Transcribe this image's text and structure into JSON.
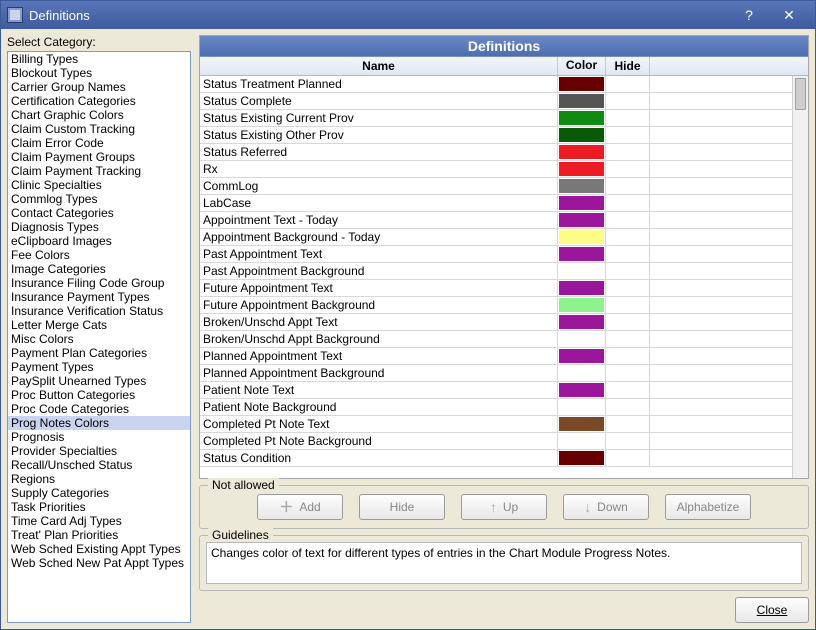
{
  "window": {
    "title": "Definitions",
    "help": "?",
    "close": "✕"
  },
  "sidebar": {
    "label": "Select Category:",
    "items": [
      "Billing Types",
      "Blockout Types",
      "Carrier Group Names",
      "Certification Categories",
      "Chart Graphic Colors",
      "Claim Custom Tracking",
      "Claim Error Code",
      "Claim Payment Groups",
      "Claim Payment Tracking",
      "Clinic Specialties",
      "Commlog Types",
      "Contact Categories",
      "Diagnosis Types",
      "eClipboard Images",
      "Fee Colors",
      "Image Categories",
      "Insurance Filing Code Group",
      "Insurance Payment Types",
      "Insurance Verification Status",
      "Letter Merge Cats",
      "Misc Colors",
      "Payment Plan Categories",
      "Payment Types",
      "PaySplit Unearned Types",
      "Proc Button Categories",
      "Proc Code Categories",
      "Prog Notes Colors",
      "Prognosis",
      "Provider Specialties",
      "Recall/Unsched Status",
      "Regions",
      "Supply Categories",
      "Task Priorities",
      "Time Card Adj Types",
      "Treat' Plan Priorities",
      "Web Sched Existing Appt Types",
      "Web Sched New Pat Appt Types"
    ],
    "selected_index": 26
  },
  "grid": {
    "title": "Definitions",
    "columns": {
      "name": "Name",
      "color": "Color",
      "hide": "Hide"
    },
    "rows": [
      {
        "name": "Status Treatment Planned",
        "color": "#660000"
      },
      {
        "name": "Status Complete",
        "color": "#555555"
      },
      {
        "name": "Status Existing Current Prov",
        "color": "#118a11"
      },
      {
        "name": "Status Existing Other Prov",
        "color": "#085a08"
      },
      {
        "name": "Status Referred",
        "color": "#ed1c24"
      },
      {
        "name": "Rx",
        "color": "#ed1c24"
      },
      {
        "name": "CommLog",
        "color": "#787878"
      },
      {
        "name": "LabCase",
        "color": "#9a169a"
      },
      {
        "name": "Appointment Text - Today",
        "color": "#9a169a"
      },
      {
        "name": "Appointment Background - Today",
        "color": "#fdfd87"
      },
      {
        "name": "Past Appointment Text",
        "color": "#9a169a"
      },
      {
        "name": "Past Appointment Background",
        "color": "#ffffff"
      },
      {
        "name": "Future Appointment Text",
        "color": "#9a169a"
      },
      {
        "name": "Future Appointment Background",
        "color": "#8ef28e"
      },
      {
        "name": "Broken/Unschd Appt Text",
        "color": "#9a169a"
      },
      {
        "name": "Broken/Unschd Appt Background",
        "color": "#ffffff"
      },
      {
        "name": "Planned Appointment Text",
        "color": "#9a169a"
      },
      {
        "name": "Planned Appointment Background",
        "color": "#ffffff"
      },
      {
        "name": "Patient Note Text",
        "color": "#9a169a"
      },
      {
        "name": "Patient Note Background",
        "color": "#ffffff"
      },
      {
        "name": "Completed Pt Note Text",
        "color": "#7a4a28"
      },
      {
        "name": "Completed Pt Note Background",
        "color": "#ffffff"
      },
      {
        "name": "Status Condition",
        "color": "#660000"
      }
    ]
  },
  "buttons_group": {
    "label": "Not allowed",
    "add": "Add",
    "hide": "Hide",
    "up": "Up",
    "down": "Down",
    "alphabetize": "Alphabetize"
  },
  "guidelines": {
    "label": "Guidelines",
    "text": "Changes color of text for different types of entries in the Chart Module Progress Notes."
  },
  "footer": {
    "close": "Close"
  }
}
